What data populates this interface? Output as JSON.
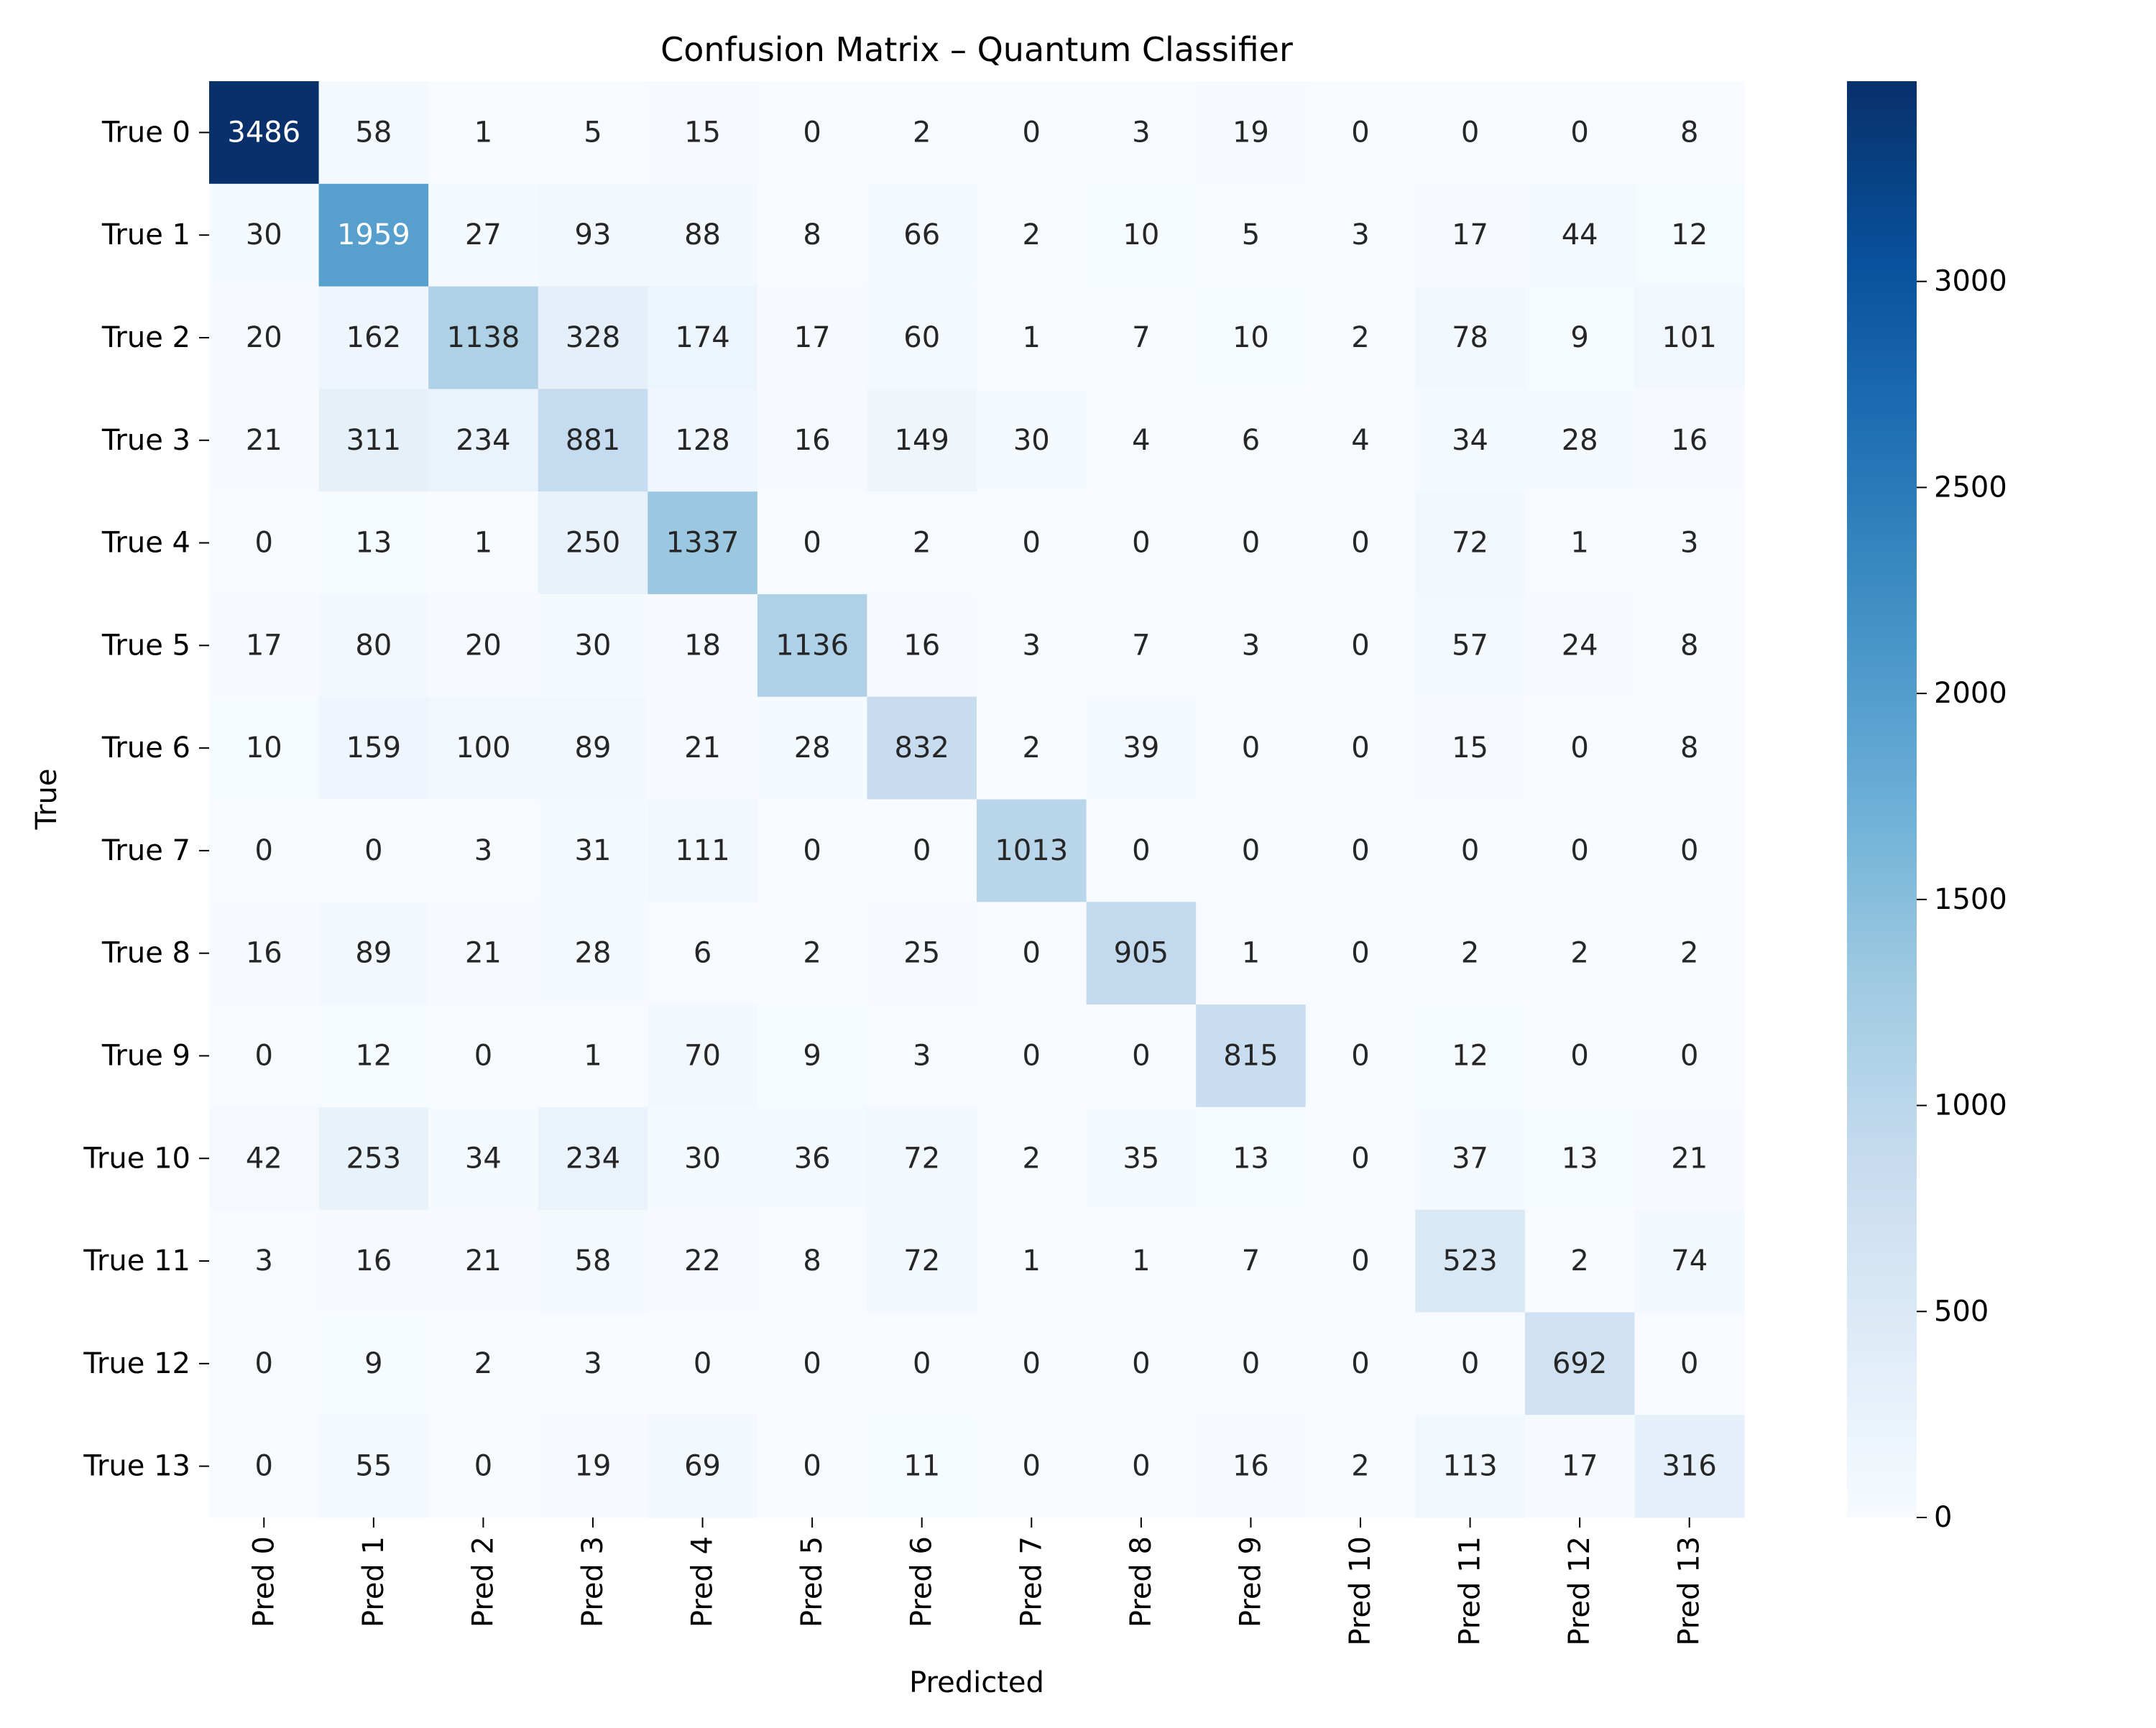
{
  "chart_data": {
    "type": "heatmap",
    "title": "Confusion Matrix – Quantum Classifier",
    "xlabel": "Predicted",
    "ylabel": "True",
    "x_categories": [
      "Pred 0",
      "Pred 1",
      "Pred 2",
      "Pred 3",
      "Pred 4",
      "Pred 5",
      "Pred 6",
      "Pred 7",
      "Pred 8",
      "Pred 9",
      "Pred 10",
      "Pred 11",
      "Pred 12",
      "Pred 13"
    ],
    "y_categories": [
      "True 0",
      "True 1",
      "True 2",
      "True 3",
      "True 4",
      "True 5",
      "True 6",
      "True 7",
      "True 8",
      "True 9",
      "True 10",
      "True 11",
      "True 12",
      "True 13"
    ],
    "values": [
      [
        3486,
        58,
        1,
        5,
        15,
        0,
        2,
        0,
        3,
        19,
        0,
        0,
        0,
        8
      ],
      [
        30,
        1959,
        27,
        93,
        88,
        8,
        66,
        2,
        10,
        5,
        3,
        17,
        44,
        12
      ],
      [
        20,
        162,
        1138,
        328,
        174,
        17,
        60,
        1,
        7,
        10,
        2,
        78,
        9,
        101
      ],
      [
        21,
        311,
        234,
        881,
        128,
        16,
        149,
        30,
        4,
        6,
        4,
        34,
        28,
        16
      ],
      [
        0,
        13,
        1,
        250,
        1337,
        0,
        2,
        0,
        0,
        0,
        0,
        72,
        1,
        3
      ],
      [
        17,
        80,
        20,
        30,
        18,
        1136,
        16,
        3,
        7,
        3,
        0,
        57,
        24,
        8
      ],
      [
        10,
        159,
        100,
        89,
        21,
        28,
        832,
        2,
        39,
        0,
        0,
        15,
        0,
        8
      ],
      [
        0,
        0,
        3,
        31,
        111,
        0,
        0,
        1013,
        0,
        0,
        0,
        0,
        0,
        0
      ],
      [
        16,
        89,
        21,
        28,
        6,
        2,
        25,
        0,
        905,
        1,
        0,
        2,
        2,
        2
      ],
      [
        0,
        12,
        0,
        1,
        70,
        9,
        3,
        0,
        0,
        815,
        0,
        12,
        0,
        0
      ],
      [
        42,
        253,
        34,
        234,
        30,
        36,
        72,
        2,
        35,
        13,
        0,
        37,
        13,
        21
      ],
      [
        3,
        16,
        21,
        58,
        22,
        8,
        72,
        1,
        1,
        7,
        0,
        523,
        2,
        74
      ],
      [
        0,
        9,
        2,
        3,
        0,
        0,
        0,
        0,
        0,
        0,
        0,
        0,
        692,
        0
      ],
      [
        0,
        55,
        0,
        19,
        69,
        0,
        11,
        0,
        0,
        16,
        2,
        113,
        17,
        316
      ]
    ],
    "colormap": "Blues",
    "colors": {
      "low": "#f7fbff",
      "high": "#08306b"
    },
    "colorbar": {
      "min": 0,
      "max": 3486,
      "ticks": [
        0,
        500,
        1000,
        1500,
        2000,
        2500,
        3000
      ]
    }
  }
}
